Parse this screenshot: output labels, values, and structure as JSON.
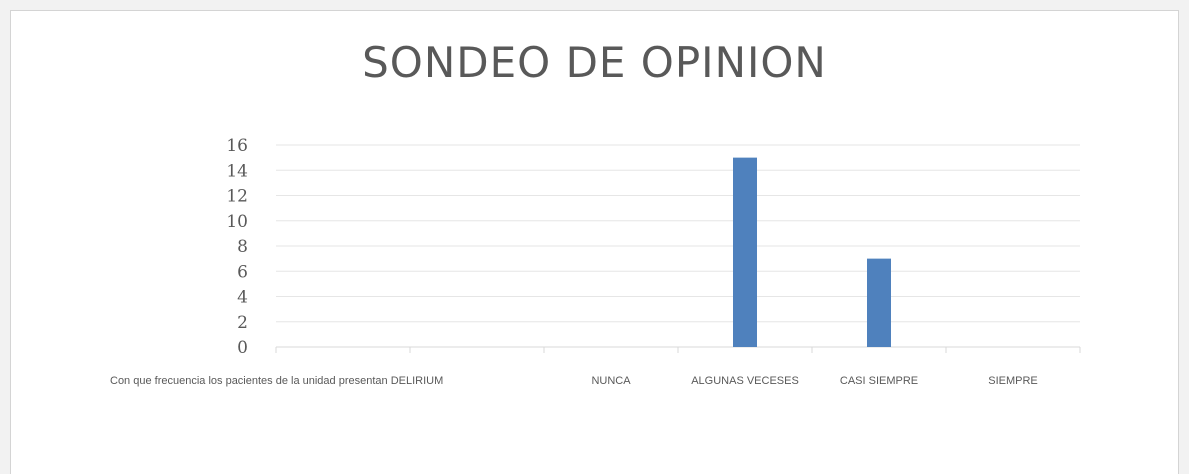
{
  "chart_data": {
    "type": "bar",
    "title": "SONDEO DE OPINION",
    "categories": [
      "Con que frecuencia los pacientes de la unidad presentan DELIRIUM",
      "",
      "NUNCA",
      "ALGUNAS VECESES",
      "CASI SIEMPRE",
      "SIEMPRE"
    ],
    "series": [
      {
        "values": [
          null,
          null,
          0,
          15,
          7,
          0
        ]
      }
    ],
    "ylim": [
      0,
      16
    ],
    "yticks": [
      0,
      2,
      4,
      6,
      8,
      10,
      12,
      14,
      16
    ],
    "xlabel": "",
    "ylabel": "",
    "grid": true,
    "bar_color": "#4f81bd"
  }
}
